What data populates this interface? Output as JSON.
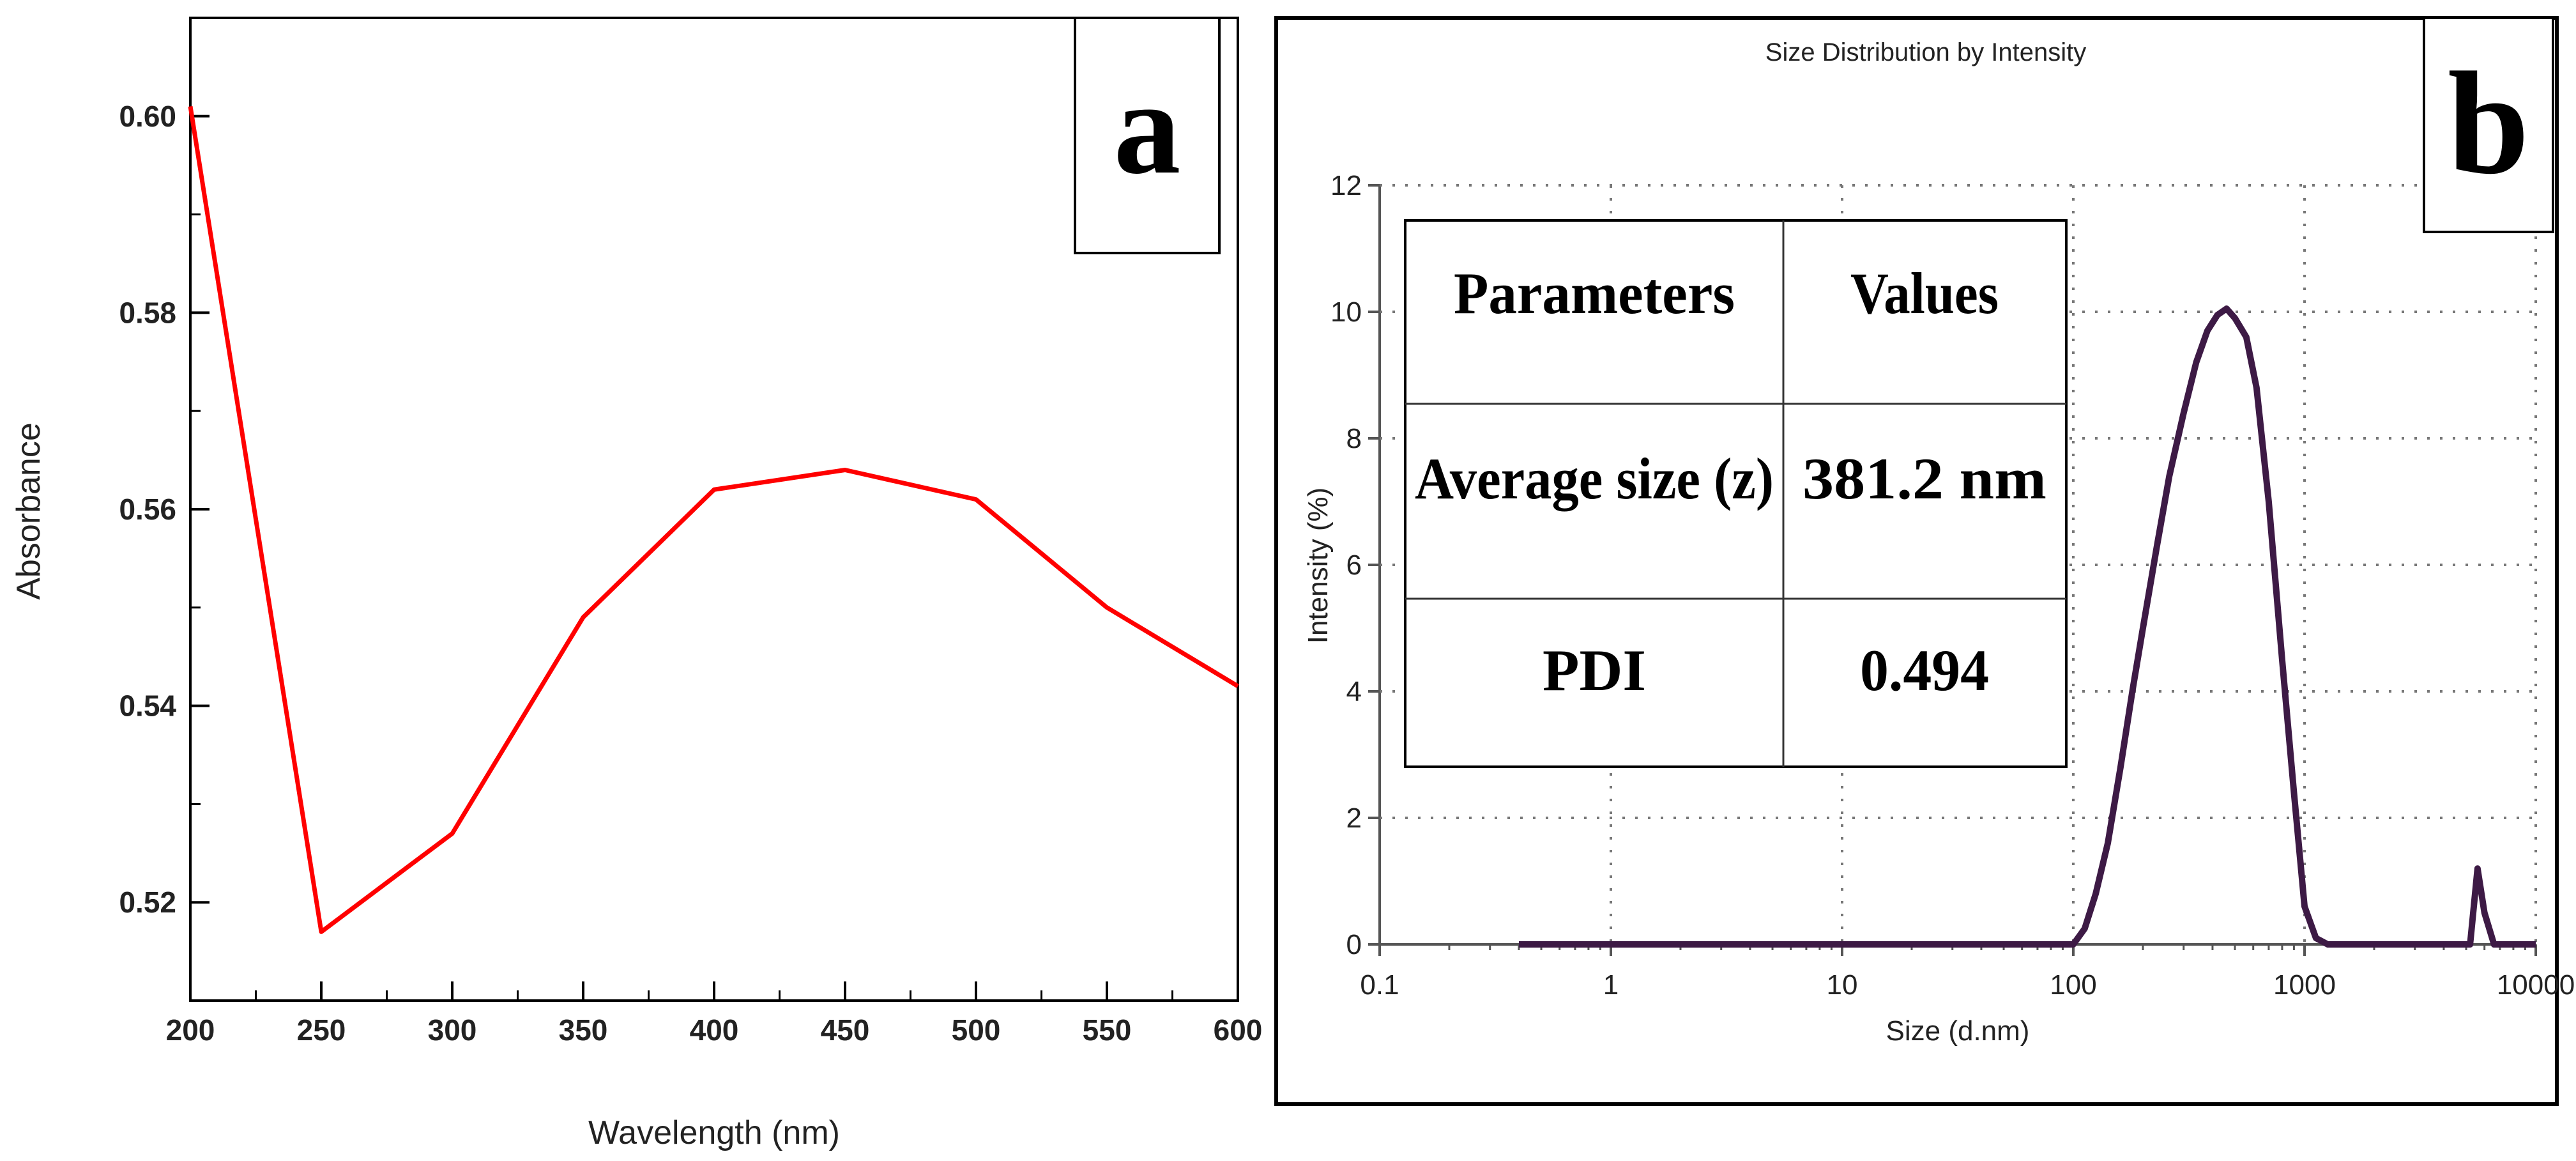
{
  "chart_data": [
    {
      "panel": "a",
      "type": "line",
      "title": "",
      "xlabel": "Wavelength (nm)",
      "ylabel": "Absorbance",
      "xlim": [
        200,
        600
      ],
      "ylim": [
        0.51,
        0.61
      ],
      "xticks": [
        200,
        250,
        300,
        350,
        400,
        450,
        500,
        550,
        600
      ],
      "yticks": [
        0.52,
        0.54,
        0.56,
        0.58,
        0.6
      ],
      "ytick_labels": [
        "0.52",
        "0.54",
        "0.56",
        "0.58",
        "0.60"
      ],
      "grid": false,
      "line_color": "#ff0000",
      "series": [
        {
          "name": "Absorbance",
          "x": [
            200,
            250,
            300,
            350,
            400,
            450,
            500,
            550,
            600
          ],
          "y": [
            0.601,
            0.517,
            0.527,
            0.549,
            0.562,
            0.564,
            0.561,
            0.55,
            0.542
          ]
        }
      ],
      "panel_label": "a"
    },
    {
      "panel": "b",
      "type": "line",
      "title": "Size Distribution by Intensity",
      "xlabel": "Size (d.nm)",
      "ylabel": "Intensity (%)",
      "xscale": "log",
      "xlim": [
        0.1,
        10000
      ],
      "ylim": [
        0,
        12
      ],
      "xticks": [
        0.1,
        1,
        10,
        100,
        1000,
        10000
      ],
      "xtick_labels": [
        "0.1",
        "1",
        "10",
        "100",
        "1000",
        "10000"
      ],
      "yticks": [
        0,
        2,
        4,
        6,
        8,
        10,
        12
      ],
      "ytick_labels": [
        "0",
        "2",
        "4",
        "6",
        "8",
        "10",
        "12"
      ],
      "grid": true,
      "line_color": "#3d1a45",
      "series": [
        {
          "name": "Intensity",
          "x": [
            0.4,
            1,
            10,
            50,
            100,
            112,
            125,
            141,
            160,
            180,
            200,
            230,
            260,
            300,
            340,
            380,
            420,
            460,
            500,
            560,
            620,
            700,
            800,
            900,
            1000,
            1120,
            1260,
            1400,
            2000,
            3000,
            4000,
            5200,
            5600,
            6000,
            6600,
            10000
          ],
          "y": [
            0,
            0,
            0,
            0,
            0,
            0.25,
            0.8,
            1.6,
            2.8,
            4.0,
            5.0,
            6.3,
            7.4,
            8.4,
            9.2,
            9.7,
            9.95,
            10.05,
            9.9,
            9.6,
            8.8,
            7.0,
            4.5,
            2.4,
            0.6,
            0.1,
            0,
            0,
            0,
            0,
            0,
            0,
            1.2,
            0.5,
            0,
            0
          ]
        }
      ],
      "panel_label": "b",
      "inset_table": {
        "headers": [
          "Parameters",
          "Values"
        ],
        "rows": [
          [
            "Average size (z)",
            "381.2 nm"
          ],
          [
            "PDI",
            "0.494"
          ]
        ]
      }
    }
  ]
}
